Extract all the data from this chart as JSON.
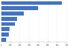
{
  "values": [
    648,
    394,
    239,
    168,
    148,
    86,
    79,
    48
  ],
  "bar_color": "#4472c4",
  "background_color": "#ffffff",
  "xlim": [
    0,
    700
  ],
  "bar_height": 0.75,
  "grid_color": "#e0e0e0",
  "tick_color": "#555555",
  "xticks": [
    0,
    100,
    200,
    300,
    400,
    500,
    600,
    700
  ]
}
